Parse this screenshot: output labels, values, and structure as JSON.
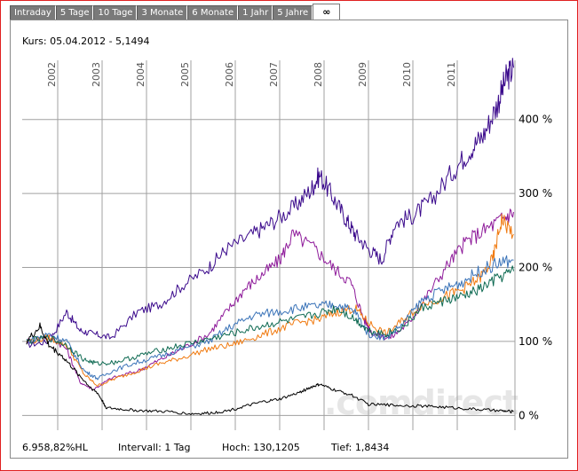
{
  "tabs": [
    {
      "label": "Intraday",
      "active": false
    },
    {
      "label": "5 Tage",
      "active": false
    },
    {
      "label": "10 Tage",
      "active": false
    },
    {
      "label": "3 Monate",
      "active": false
    },
    {
      "label": "6 Monate",
      "active": false
    },
    {
      "label": "1 Jahr",
      "active": false
    },
    {
      "label": "5 Jahre",
      "active": false
    },
    {
      "label": "∞",
      "active": true
    }
  ],
  "header": {
    "kurs": "Kurs: 05.04.2012 - 5,1494"
  },
  "footer": {
    "change": "6.958,82%HL",
    "intervall": "Intervall: 1 Tag",
    "hoch": "Hoch: 130,1205",
    "tief": "Tief: 1,8434"
  },
  "watermark": ".comdirect",
  "colors": {
    "grid": "#a0a0a0",
    "black": "#000000",
    "indigo": "#3b0a8c",
    "purple": "#8e1a9a",
    "orange": "#f07a10",
    "steelblue": "#3a73b8",
    "teal": "#0e6a52"
  },
  "chart_data": {
    "type": "line",
    "x_tick_labels": [
      "2002",
      "2003",
      "2004",
      "2005",
      "2006",
      "2007",
      "2008",
      "2009",
      "2010",
      "2011"
    ],
    "y_tick_labels": [
      "0 %",
      "100 %",
      "200 %",
      "300 %",
      "400 %"
    ],
    "y_ticks": [
      0,
      100,
      200,
      300,
      400
    ],
    "ylim": [
      -20,
      480
    ],
    "xlim": [
      2001.2,
      2012.3
    ],
    "grid": true,
    "series": [
      {
        "color_key": "indigo",
        "x": [
          2001.3,
          2001.8,
          2002.2,
          2002.5,
          2002.8,
          2003.2,
          2003.8,
          2004.3,
          2004.8,
          2005.4,
          2005.8,
          2006.4,
          2006.8,
          2007.3,
          2007.7,
          2007.9,
          2008.2,
          2008.5,
          2008.7,
          2009.0,
          2009.3,
          2009.6,
          2010.0,
          2010.4,
          2010.9,
          2011.3,
          2011.6,
          2011.9,
          2012.1,
          2012.27
        ],
        "y": [
          95,
          100,
          140,
          115,
          110,
          105,
          140,
          150,
          175,
          200,
          225,
          245,
          260,
          280,
          305,
          325,
          295,
          265,
          245,
          225,
          210,
          260,
          270,
          290,
          330,
          360,
          380,
          420,
          455,
          470
        ]
      },
      {
        "color_key": "purple",
        "x": [
          2001.3,
          2001.8,
          2002.2,
          2002.5,
          2002.8,
          2003.2,
          2003.8,
          2004.3,
          2004.8,
          2005.4,
          2005.8,
          2006.2,
          2006.6,
          2007.0,
          2007.3,
          2007.8,
          2008.2,
          2008.6,
          2008.9,
          2009.1,
          2009.5,
          2009.9,
          2010.3,
          2010.8,
          2011.2,
          2011.6,
          2012.0,
          2012.27
        ],
        "y": [
          100,
          108,
          90,
          45,
          35,
          50,
          60,
          75,
          90,
          110,
          140,
          170,
          190,
          210,
          245,
          225,
          200,
          180,
          130,
          110,
          105,
          125,
          160,
          205,
          235,
          250,
          265,
          275
        ]
      },
      {
        "color_key": "orange",
        "x": [
          2001.3,
          2001.8,
          2002.2,
          2002.6,
          2002.9,
          2003.3,
          2003.8,
          2004.3,
          2004.8,
          2005.4,
          2005.9,
          2006.4,
          2006.9,
          2007.4,
          2007.9,
          2008.3,
          2008.7,
          2009.0,
          2009.4,
          2009.8,
          2010.2,
          2010.7,
          2011.1,
          2011.5,
          2011.8,
          2012.0,
          2012.27
        ],
        "y": [
          100,
          105,
          95,
          55,
          40,
          50,
          60,
          70,
          78,
          90,
          95,
          105,
          115,
          125,
          130,
          140,
          145,
          125,
          110,
          130,
          150,
          160,
          170,
          185,
          210,
          265,
          245
        ]
      },
      {
        "color_key": "steelblue",
        "x": [
          2001.3,
          2001.8,
          2002.2,
          2002.6,
          2002.9,
          2003.3,
          2003.8,
          2004.3,
          2004.8,
          2005.4,
          2005.9,
          2006.4,
          2006.9,
          2007.4,
          2007.9,
          2008.3,
          2008.7,
          2009.0,
          2009.4,
          2009.8,
          2010.2,
          2010.7,
          2011.1,
          2011.5,
          2011.9,
          2012.27
        ],
        "y": [
          100,
          110,
          100,
          60,
          50,
          62,
          72,
          80,
          90,
          100,
          120,
          135,
          140,
          145,
          148,
          150,
          140,
          110,
          105,
          125,
          155,
          170,
          180,
          195,
          205,
          210
        ]
      },
      {
        "color_key": "teal",
        "x": [
          2001.3,
          2001.8,
          2002.2,
          2002.6,
          2002.9,
          2003.3,
          2003.8,
          2004.3,
          2004.8,
          2005.4,
          2005.9,
          2006.4,
          2006.9,
          2007.4,
          2007.9,
          2008.3,
          2008.7,
          2009.0,
          2009.4,
          2009.8,
          2010.2,
          2010.7,
          2011.1,
          2011.5,
          2011.9,
          2012.27
        ],
        "y": [
          100,
          105,
          95,
          75,
          70,
          72,
          80,
          88,
          95,
          103,
          110,
          118,
          125,
          130,
          138,
          145,
          130,
          115,
          110,
          120,
          145,
          155,
          160,
          170,
          185,
          195
        ]
      },
      {
        "color_key": "black",
        "x": [
          2001.3,
          2001.6,
          2001.8,
          2002.1,
          2002.4,
          2002.7,
          2002.9,
          2003.1,
          2003.5,
          2004.0,
          2004.5,
          2005.0,
          2005.4,
          2005.8,
          2006.2,
          2006.6,
          2007.0,
          2007.4,
          2007.7,
          2007.9,
          2008.2,
          2008.6,
          2009.0,
          2009.5,
          2010.0,
          2010.5,
          2011.0,
          2011.5,
          2012.0,
          2012.27
        ],
        "y": [
          100,
          120,
          95,
          80,
          60,
          40,
          30,
          10,
          8,
          6,
          5,
          2,
          3,
          6,
          12,
          18,
          22,
          30,
          38,
          42,
          35,
          28,
          15,
          14,
          13,
          12,
          10,
          8,
          6,
          5
        ]
      }
    ]
  }
}
